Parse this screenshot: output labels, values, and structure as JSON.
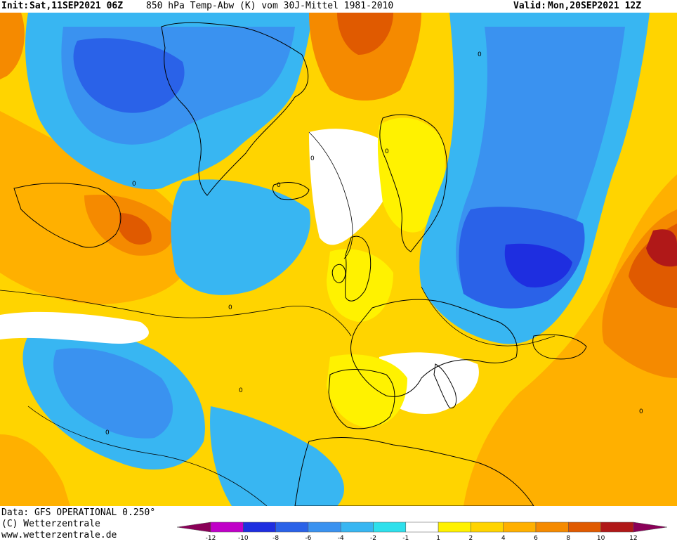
{
  "header": {
    "init_label": "Init:",
    "init_value": "Sat,11SEP2021 06Z",
    "title": "850 hPa Temp-Abw (K) vom 30J-Mittel 1981-2010",
    "valid_label": "Valid:",
    "valid_value": "Mon,20SEP2021 12Z"
  },
  "footer": {
    "data_line": "Data: GFS OPERATIONAL 0.250°",
    "copyright": "(C) Wetterzentrale",
    "url": "www.wetterzentrale.de"
  },
  "legend": {
    "ticks": [
      "-12",
      "-10",
      "-8",
      "-6",
      "-4",
      "-2",
      "-1",
      "1",
      "2",
      "4",
      "6",
      "8",
      "10",
      "12"
    ],
    "bins": [
      {
        "from": "-12",
        "to": "-10",
        "color": "#c000c8"
      },
      {
        "from": "-10",
        "to": "-8",
        "color": "#1e2ee0"
      },
      {
        "from": "-8",
        "to": "-6",
        "color": "#2a62e8"
      },
      {
        "from": "-6",
        "to": "-4",
        "color": "#3a92f0"
      },
      {
        "from": "-4",
        "to": "-2",
        "color": "#38b6f2"
      },
      {
        "from": "-2",
        "to": "-1",
        "color": "#2ee0ec"
      },
      {
        "from": "-1",
        "to": "1",
        "color": "#ffffff"
      },
      {
        "from": "1",
        "to": "2",
        "color": "#fff200"
      },
      {
        "from": "2",
        "to": "4",
        "color": "#ffd400"
      },
      {
        "from": "4",
        "to": "6",
        "color": "#ffb000"
      },
      {
        "from": "6",
        "to": "8",
        "color": "#f58a00"
      },
      {
        "from": "8",
        "to": "10",
        "color": "#e05a00"
      },
      {
        "from": "10",
        "to": "12",
        "color": "#b01818"
      }
    ],
    "low_end_color": "#8a0058",
    "high_end_color": "#8a0058"
  },
  "map": {
    "variable": "850 hPa temperature anomaly (K)",
    "contour_label": "0"
  }
}
